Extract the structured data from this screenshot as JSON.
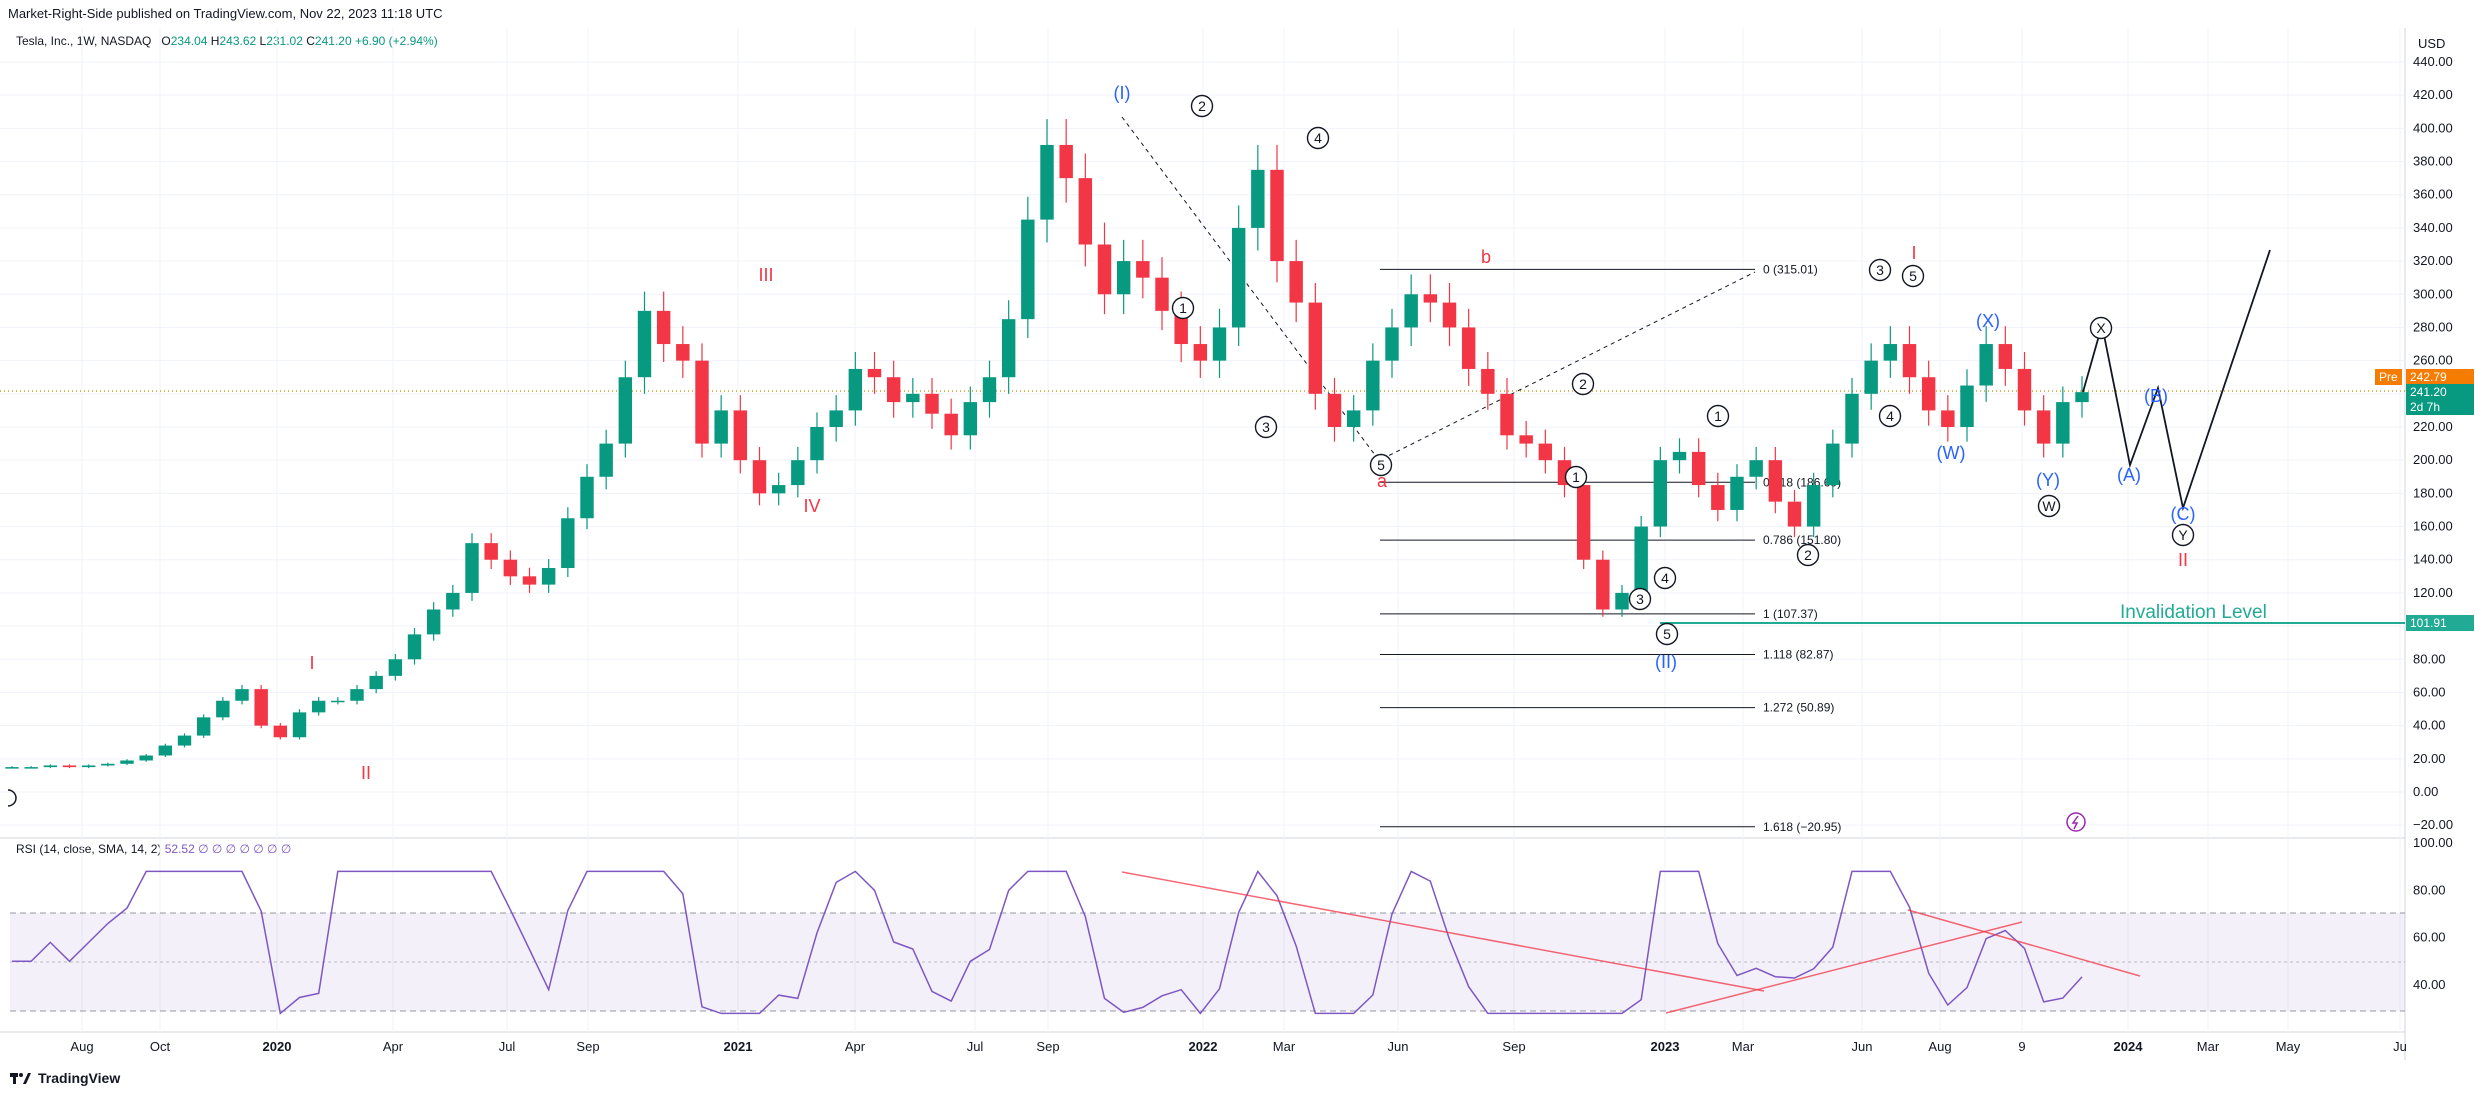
{
  "publisher": "Market-Right-Side published on TradingView.com, Nov 22, 2023 11:18 UTC",
  "symbol": {
    "title": "Tesla, Inc., 1W, NASDAQ",
    "open_label": "O",
    "open": "234.04",
    "high_label": "H",
    "high": "243.62",
    "low_label": "L",
    "low": "231.02",
    "close_label": "C",
    "close": "241.20",
    "change": "+6.90 (+2.94%)"
  },
  "rsi_legend": {
    "title": "RSI (14, close, SMA, 14, 2)",
    "value": "52.52",
    "na": "∅ ∅ ∅ ∅ ∅ ∅ ∅"
  },
  "currency": "USD",
  "pre_tag": {
    "label": "Pre",
    "value": "242.79"
  },
  "last_price_tag": {
    "value": "241.20",
    "countdown": "2d 7h"
  },
  "invalidation": {
    "label": "Invalidation Level",
    "value": "101.91"
  },
  "footer": {
    "brand": "TradingView"
  },
  "colors": {
    "up": "#089981",
    "down": "#f23645",
    "rsi": "#7e57c2",
    "wave_blue": "#2962ff",
    "wave_red": "#f23645",
    "invalid": "#22ab94"
  },
  "chart_data": [
    {
      "type": "candlestick",
      "title": "Tesla, Inc., 1W, NASDAQ",
      "x_ticks": [
        "Aug",
        "Oct",
        "2020",
        "Apr",
        "Jul",
        "Sep",
        "2021",
        "Apr",
        "Jul",
        "Sep",
        "2022",
        "Mar",
        "Jun",
        "Sep",
        "2023",
        "Mar",
        "Jun",
        "Aug",
        "9",
        "2024",
        "Mar",
        "May",
        "Ju"
      ],
      "y_ticks": [
        440,
        420,
        400,
        380,
        360,
        340,
        320,
        300,
        280,
        260,
        240,
        220,
        200,
        180,
        160,
        140,
        120,
        100,
        80,
        60,
        40,
        20,
        0,
        -20
      ],
      "y_tick_labels": [
        "440.00",
        "420.00",
        "400.00",
        "380.00",
        "360.00",
        "340.00",
        "320.00",
        "300.00",
        "280.00",
        "260.00",
        "240.00",
        "220.00",
        "200.00",
        "180.00",
        "160.00",
        "140.00",
        "120.00",
        "100.00",
        "80.00",
        "60.00",
        "40.00",
        "20.00",
        "0.00",
        "−20.00"
      ],
      "ylim": [
        -25,
        450
      ],
      "series_close_approx": [
        15,
        15,
        16,
        15,
        16,
        17,
        19,
        22,
        28,
        34,
        45,
        55,
        62,
        40,
        33,
        48,
        55,
        55,
        62,
        70,
        80,
        95,
        110,
        120,
        150,
        140,
        130,
        125,
        135,
        165,
        190,
        210,
        250,
        290,
        270,
        260,
        210,
        230,
        200,
        180,
        185,
        200,
        220,
        230,
        255,
        250,
        235,
        240,
        228,
        215,
        235,
        250,
        285,
        345,
        390,
        370,
        330,
        300,
        320,
        310,
        290,
        270,
        260,
        280,
        340,
        375,
        320,
        295,
        240,
        220,
        230,
        260,
        280,
        300,
        295,
        280,
        255,
        240,
        215,
        210,
        200,
        185,
        140,
        110,
        120,
        160,
        200,
        205,
        185,
        170,
        190,
        200,
        175,
        160,
        185,
        210,
        240,
        260,
        270,
        250,
        230,
        220,
        245,
        270,
        255,
        230,
        210,
        235,
        241
      ]
    },
    {
      "type": "fibonacci",
      "levels": [
        {
          "ratio": "0",
          "price": 315.01,
          "label": "0 (315.01)"
        },
        {
          "ratio": "0.618",
          "price": 186.69,
          "label": "0.618 (186.69)"
        },
        {
          "ratio": "0.786",
          "price": 151.8,
          "label": "0.786 (151.80)"
        },
        {
          "ratio": "1",
          "price": 107.37,
          "label": "1 (107.37)"
        },
        {
          "ratio": "1.118",
          "price": 82.87,
          "label": "1.118 (82.87)"
        },
        {
          "ratio": "1.272",
          "price": 50.89,
          "label": "1.272 (50.89)"
        },
        {
          "ratio": "1.618",
          "price": -20.95,
          "label": "1.618 (−20.95)"
        }
      ]
    },
    {
      "type": "line",
      "title": "RSI (14, close, SMA, 14, 2)",
      "y_ticks": [
        100,
        80,
        60,
        40
      ],
      "y_tick_labels": [
        "100.00",
        "80.00",
        "60.00",
        "40.00"
      ],
      "band": [
        30,
        70
      ],
      "mid": 50,
      "ylim": [
        25,
        102
      ]
    }
  ],
  "wave_labels": {
    "red_roman": [
      "I",
      "II",
      "III",
      "IV",
      "a",
      "b",
      "I",
      "II"
    ],
    "blue": [
      "(I)",
      "(II)",
      "(W)",
      "(X)",
      "(Y)",
      "(A)",
      "(B)",
      "(C)"
    ],
    "circled": [
      "1",
      "2",
      "3",
      "4",
      "5",
      "1",
      "2",
      "3",
      "4",
      "5",
      "1",
      "2",
      "3",
      "4",
      "5",
      "W",
      "X",
      "Y"
    ]
  }
}
